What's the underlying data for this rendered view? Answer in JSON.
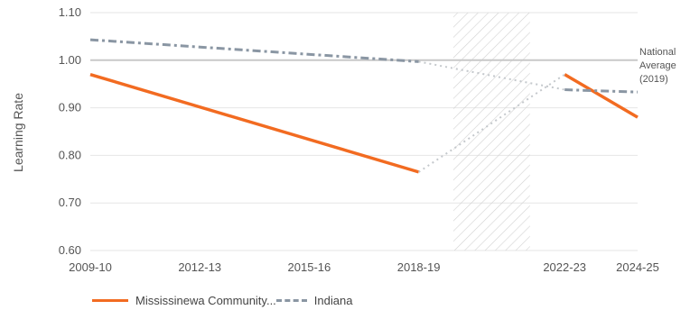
{
  "chart_data": {
    "type": "line",
    "ylabel": "Learning Rate",
    "ylim": [
      0.6,
      1.1
    ],
    "yticks": [
      "0.60",
      "0.70",
      "0.80",
      "0.90",
      "1.00",
      "1.10"
    ],
    "x_tick_labels": [
      "2009-10",
      "2012-13",
      "2015-16",
      "2018-19",
      "2022-23",
      "2024-25"
    ],
    "reference_line": {
      "value": 1.0,
      "label_lines": [
        "National",
        "Average",
        "(2019)"
      ],
      "color": "#C8C8C8"
    },
    "shaded_region": {
      "from": "2019-20",
      "to": "2021-22",
      "style": "hatched"
    },
    "series": [
      {
        "name": "Mississinewa Community...",
        "color": "#F26B21",
        "style": "solid",
        "segments": [
          [
            [
              "2009-10",
              0.97
            ],
            [
              "2018-19",
              0.765
            ]
          ],
          [
            [
              "2022-23",
              0.97
            ],
            [
              "2024-25",
              0.88
            ]
          ]
        ],
        "gap_connector": [
          [
            "2018-19",
            0.765
          ],
          [
            "2022-23",
            0.97
          ]
        ]
      },
      {
        "name": "Indiana",
        "color": "#8A96A3",
        "style": "dashed",
        "segments": [
          [
            [
              "2009-10",
              1.043
            ],
            [
              "2018-19",
              0.997
            ]
          ],
          [
            [
              "2022-23",
              0.938
            ],
            [
              "2024-25",
              0.933
            ]
          ]
        ],
        "gap_connector": [
          [
            "2018-19",
            0.997
          ],
          [
            "2022-23",
            0.938
          ]
        ]
      }
    ],
    "legend": {
      "placement": "bottom-left",
      "entries": [
        "Mississinewa Community...",
        "Indiana"
      ]
    },
    "grid": "horizontal"
  }
}
